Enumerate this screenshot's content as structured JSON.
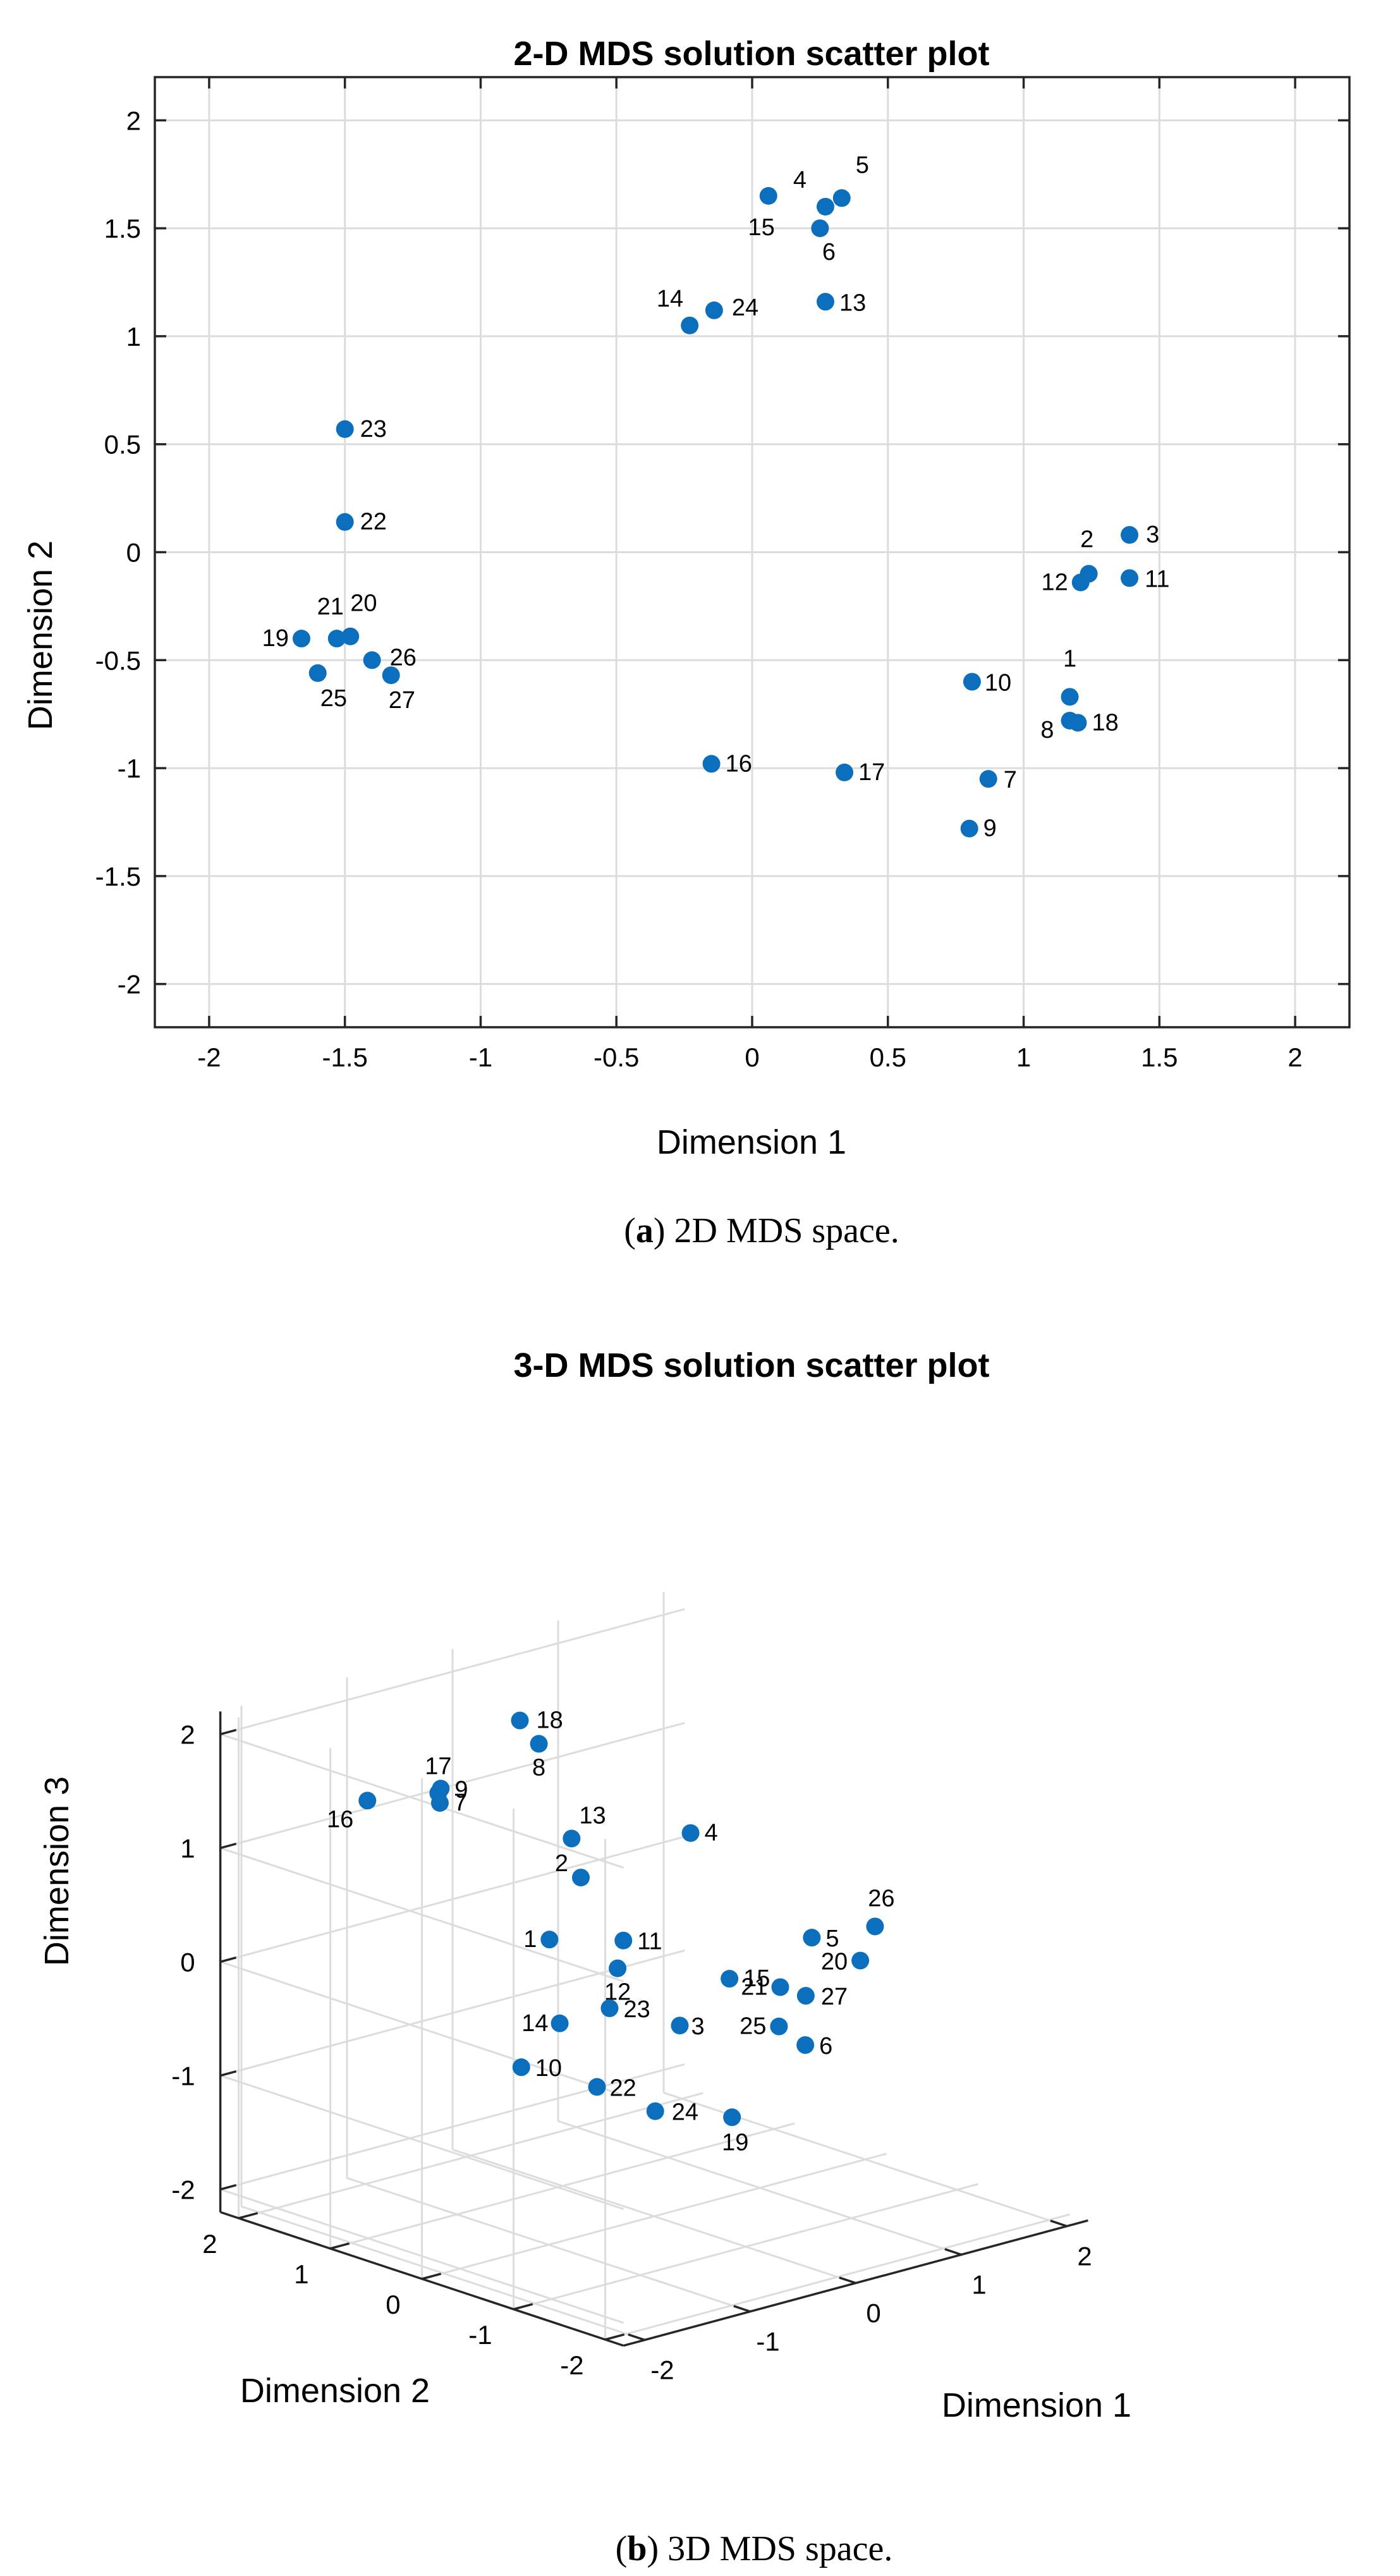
{
  "chart_data": [
    {
      "type": "scatter",
      "title": "2-D MDS solution scatter plot",
      "xlabel": "Dimension 1",
      "ylabel": "Dimension 2",
      "xlim": [
        -2.2,
        2.2
      ],
      "ylim": [
        -2.2,
        2.2
      ],
      "xticks": [
        -2,
        -1.5,
        -1,
        -0.5,
        0,
        0.5,
        1,
        1.5,
        2
      ],
      "yticks": [
        -2,
        -1.5,
        -1,
        -0.5,
        0,
        0.5,
        1,
        1.5,
        2
      ],
      "xtick_labels": [
        "-2",
        "-1.5",
        "-1",
        "-0.5",
        "0",
        "0.5",
        "1",
        "1.5",
        "2"
      ],
      "ytick_labels": [
        "-2",
        "-1.5",
        "-1",
        "-0.5",
        "0",
        "0.5",
        "1",
        "1.5",
        "2"
      ],
      "grid": true,
      "caption_prefix": "(",
      "caption_letter": "a",
      "caption_text": ") 2D MDS space.",
      "points": [
        {
          "label": "1",
          "x": 1.17,
          "y": -0.67
        },
        {
          "label": "2",
          "x": 1.24,
          "y": -0.1
        },
        {
          "label": "3",
          "x": 1.39,
          "y": 0.08
        },
        {
          "label": "4",
          "x": 0.27,
          "y": 1.6
        },
        {
          "label": "5",
          "x": 0.33,
          "y": 1.64
        },
        {
          "label": "6",
          "x": 0.25,
          "y": 1.5
        },
        {
          "label": "7",
          "x": 0.87,
          "y": -1.05
        },
        {
          "label": "8",
          "x": 1.17,
          "y": -0.78
        },
        {
          "label": "9",
          "x": 0.8,
          "y": -1.28
        },
        {
          "label": "10",
          "x": 0.81,
          "y": -0.6
        },
        {
          "label": "11",
          "x": 1.39,
          "y": -0.12
        },
        {
          "label": "12",
          "x": 1.21,
          "y": -0.14
        },
        {
          "label": "13",
          "x": 0.27,
          "y": 1.16
        },
        {
          "label": "14",
          "x": -0.23,
          "y": 1.05
        },
        {
          "label": "15",
          "x": 0.06,
          "y": 1.65
        },
        {
          "label": "16",
          "x": -0.15,
          "y": -0.98
        },
        {
          "label": "17",
          "x": 0.34,
          "y": -1.02
        },
        {
          "label": "18",
          "x": 1.2,
          "y": -0.79
        },
        {
          "label": "19",
          "x": -1.66,
          "y": -0.4
        },
        {
          "label": "20",
          "x": -1.48,
          "y": -0.39
        },
        {
          "label": "21",
          "x": -1.53,
          "y": -0.4
        },
        {
          "label": "22",
          "x": -1.5,
          "y": 0.14
        },
        {
          "label": "23",
          "x": -1.5,
          "y": 0.57
        },
        {
          "label": "24",
          "x": -0.14,
          "y": 1.12
        },
        {
          "label": "25",
          "x": -1.6,
          "y": -0.56
        },
        {
          "label": "26",
          "x": -1.4,
          "y": -0.5
        },
        {
          "label": "27",
          "x": -1.33,
          "y": -0.57
        }
      ]
    },
    {
      "type": "scatter3d",
      "title": "3-D MDS solution scatter plot",
      "xlabel": "Dimension 1",
      "ylabel": "Dimension 2",
      "zlabel": "Dimension 3",
      "xlim": [
        -2.2,
        2.2
      ],
      "ylim": [
        -2.2,
        2.2
      ],
      "zlim": [
        -2.2,
        2.2
      ],
      "ticks": [
        -2,
        -1,
        0,
        1,
        2
      ],
      "tick_labels": [
        "-2",
        "-1",
        "0",
        "1",
        "2"
      ],
      "grid": true,
      "caption_prefix": "(",
      "caption_letter": "b",
      "caption_text": ") 3D MDS space.",
      "points": [
        {
          "label": "1",
          "x": 0.05,
          "y": 1.2,
          "z": -0.1
        },
        {
          "label": "2",
          "x": 0.33,
          "y": 1.18,
          "z": 0.38
        },
        {
          "label": "3",
          "x": 0.72,
          "y": 0.55,
          "z": -0.85
        },
        {
          "label": "4",
          "x": 1.3,
          "y": 1.1,
          "z": 0.55
        },
        {
          "label": "5",
          "x": 1.45,
          "y": -0.05,
          "z": -0.1
        },
        {
          "label": "6",
          "x": 1.05,
          "y": -0.44,
          "z": -0.84
        },
        {
          "label": "7",
          "x": -0.45,
          "y": 1.82,
          "z": 1.06
        },
        {
          "label": "8",
          "x": 0.21,
          "y": 1.5,
          "z": 1.5
        },
        {
          "label": "9",
          "x": -0.65,
          "y": 1.58,
          "z": 1.3
        },
        {
          "label": "10",
          "x": -0.46,
          "y": 0.92,
          "z": -1.02
        },
        {
          "label": "11",
          "x": 0.42,
          "y": 0.82,
          "z": -0.1
        },
        {
          "label": "12",
          "x": 0.4,
          "y": 0.86,
          "z": -0.35
        },
        {
          "label": "13",
          "x": 0.52,
          "y": 1.5,
          "z": 0.59
        },
        {
          "label": "14",
          "x": -0.07,
          "y": 0.95,
          "z": -0.74
        },
        {
          "label": "15",
          "x": 1.0,
          "y": 0.33,
          "z": -0.45
        },
        {
          "label": "16",
          "x": -0.72,
          "y": 2.3,
          "z": 1.02
        },
        {
          "label": "17",
          "x": -0.5,
          "y": 1.78,
          "z": 1.17
        },
        {
          "label": "18",
          "x": 0.03,
          "y": 1.5,
          "z": 1.75
        },
        {
          "label": "19",
          "x": -0.4,
          "y": -1.31,
          "z": -0.88
        },
        {
          "label": "20",
          "x": 0.39,
          "y": -1.8,
          "z": 0.43
        },
        {
          "label": "21",
          "x": -0.16,
          "y": -1.56,
          "z": 0.27
        },
        {
          "label": "22",
          "x": -0.95,
          "y": -0.47,
          "z": -0.7
        },
        {
          "label": "23",
          "x": -0.9,
          "y": -0.55,
          "z": 0.0
        },
        {
          "label": "24",
          "x": 0.21,
          "y": 0.23,
          "z": -1.39
        },
        {
          "label": "25",
          "x": -0.32,
          "y": -1.73,
          "z": 0.01
        },
        {
          "label": "26",
          "x": 0.79,
          "y": -1.5,
          "z": 0.55
        },
        {
          "label": "27",
          "x": 0.16,
          "y": -1.47,
          "z": 0.09
        }
      ]
    }
  ]
}
